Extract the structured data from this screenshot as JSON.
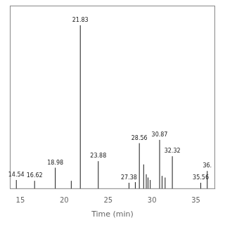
{
  "chart_data": {
    "type": "stem",
    "x": [
      14.54,
      16.62,
      18.98,
      20.8,
      21.83,
      23.88,
      27.38,
      28.1,
      28.56,
      29.05,
      29.35,
      29.55,
      29.8,
      30.87,
      31.15,
      31.5,
      32.32,
      35.56,
      36.3
    ],
    "values": [
      0.055,
      0.05,
      0.13,
      0.05,
      1.0,
      0.17,
      0.038,
      0.042,
      0.28,
      0.15,
      0.09,
      0.07,
      0.055,
      0.3,
      0.08,
      0.07,
      0.2,
      0.038,
      0.11
    ],
    "annotations": [
      "14.54",
      "16.62",
      "18.98",
      null,
      "21.83",
      "23.88",
      "27.38",
      null,
      "28.56",
      null,
      null,
      null,
      null,
      "30.87",
      null,
      null,
      "32.32",
      "35.56",
      "36."
    ],
    "xlabel": "Time (min)",
    "xlim": [
      13.8,
      37.2
    ],
    "xticks": [
      15,
      20,
      25,
      30,
      35
    ],
    "ylim": [
      0,
      1.12
    ],
    "color": "#1a1a1a",
    "grid": false,
    "tick_labels": "x"
  }
}
